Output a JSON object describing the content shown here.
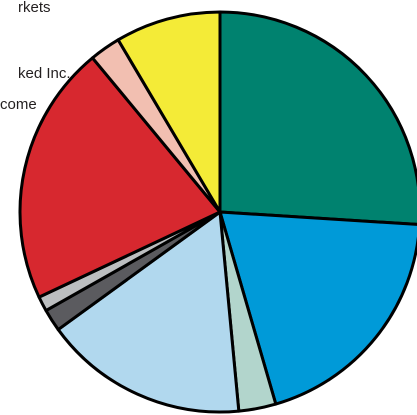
{
  "chart_data": {
    "type": "pie",
    "title": "",
    "labels_visible": [
      "rkets",
      "ked Inc.",
      "come"
    ],
    "slices": [
      {
        "value": 26.0,
        "color": "#00826f"
      },
      {
        "value": 19.5,
        "color": "#009ad8"
      },
      {
        "value": 3.0,
        "color": "#b2d5cc"
      },
      {
        "value": 16.5,
        "color": "#b1d8ee"
      },
      {
        "value": 1.8,
        "color": "#5b5b5f"
      },
      {
        "value": 1.2,
        "color": "#bcbec0"
      },
      {
        "value": 21.0,
        "color": "#d7282f"
      },
      {
        "value": 2.5,
        "color": "#f2bfb1"
      },
      {
        "value": 8.5,
        "color": "#f4eb37"
      }
    ]
  }
}
